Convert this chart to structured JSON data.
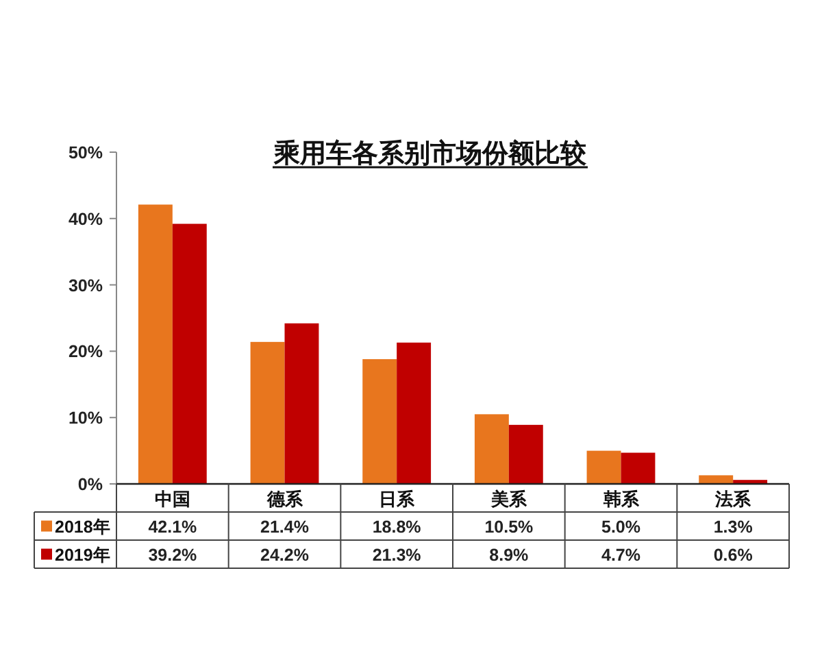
{
  "chart_data": {
    "type": "bar",
    "title": "乘用车各系别市场份额比较",
    "categories": [
      "中国",
      "德系",
      "日系",
      "美系",
      "韩系",
      "法系"
    ],
    "series": [
      {
        "name": "2018年",
        "color": "#e8761e",
        "values": [
          42.1,
          21.4,
          18.8,
          10.5,
          5.0,
          1.3
        ],
        "value_labels": [
          "42.1%",
          "21.4%",
          "18.8%",
          "10.5%",
          "5.0%",
          "1.3%"
        ]
      },
      {
        "name": "2019年",
        "color": "#c00000",
        "values": [
          39.2,
          24.2,
          21.3,
          8.9,
          4.7,
          0.6
        ],
        "value_labels": [
          "39.2%",
          "24.2%",
          "21.3%",
          "8.9%",
          "4.7%",
          "0.6%"
        ]
      }
    ],
    "ylim": [
      0,
      50
    ],
    "yticks": [
      {
        "value": 0,
        "label": "0%"
      },
      {
        "value": 10,
        "label": "10%"
      },
      {
        "value": 20,
        "label": "20%"
      },
      {
        "value": 30,
        "label": "30%"
      },
      {
        "value": 40,
        "label": "40%"
      },
      {
        "value": 50,
        "label": "50%"
      }
    ],
    "legend": "bottom"
  }
}
